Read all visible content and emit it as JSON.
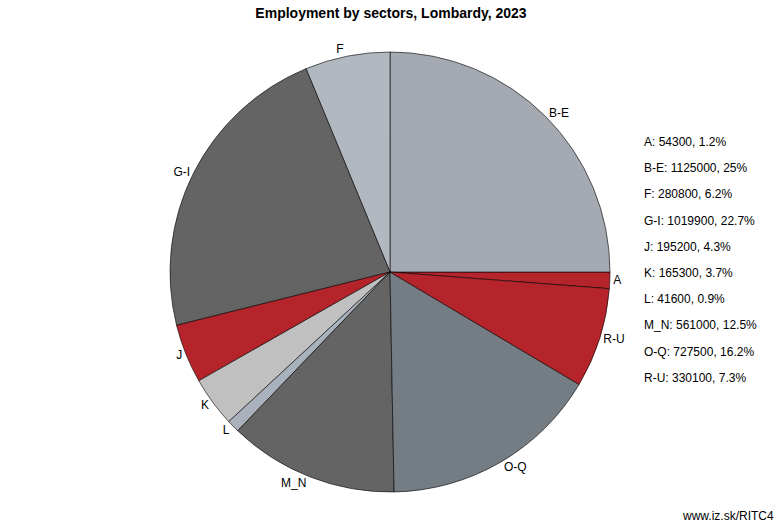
{
  "chart_data": {
    "type": "pie",
    "title": "Employment by sectors, Lombardy, 2023",
    "categories": [
      "A",
      "B-E",
      "F",
      "G-I",
      "J",
      "K",
      "L",
      "M_N",
      "O-Q",
      "R-U"
    ],
    "values": [
      54300,
      1125000,
      280800,
      1019900,
      195200,
      165300,
      41600,
      561000,
      727500,
      330100
    ],
    "value_labels": [
      "A: 54300, 1.2%",
      "B-E: 1125000, 25%",
      "F: 280800, 6.2%",
      "G-I: 1019900, 22.7%",
      "J: 195200, 4.3%",
      "K: 165300, 3.7%",
      "L: 41600, 0.9%",
      "M_N: 561000, 12.5%",
      "O-Q: 727500, 16.2%",
      "R-U: 330100, 7.3%"
    ],
    "colors": [
      "#b5242a",
      "#a5aab2",
      "#b2b8c0",
      "#646464",
      "#b5242a",
      "#c0c0c0",
      "#a9b1bc",
      "#646464",
      "#747c84",
      "#b5242a"
    ],
    "source": "www.iz.sk/RITC4"
  }
}
